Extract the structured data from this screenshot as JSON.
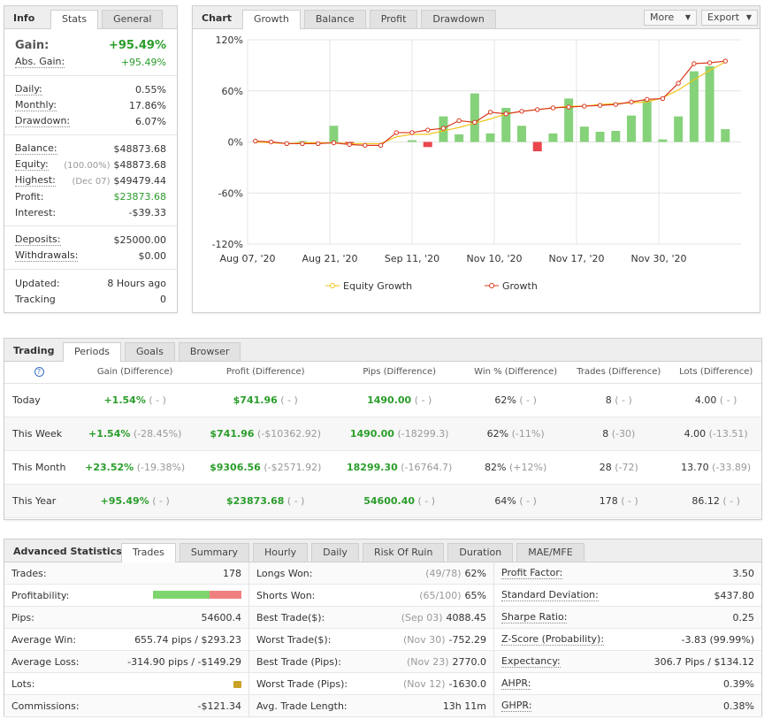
{
  "info": {
    "title": "Info",
    "tabs": [
      "Stats",
      "General"
    ],
    "gain_label": "Gain:",
    "gain": "+95.49%",
    "absgain_label": "Abs. Gain:",
    "absgain": "+95.49%",
    "rows1": [
      {
        "label": "Daily:",
        "value": "0.55%"
      },
      {
        "label": "Monthly:",
        "value": "17.86%"
      },
      {
        "label": "Drawdown:",
        "value": "6.07%"
      }
    ],
    "rows2": [
      {
        "label": "Balance:",
        "note": "",
        "value": "$48873.68"
      },
      {
        "label": "Equity:",
        "note": "(100.00%)",
        "value": "$48873.68"
      },
      {
        "label": "Highest:",
        "note": "(Dec 07)",
        "value": "$49479.44"
      },
      {
        "label": "Profit:",
        "note": "",
        "value": "$23873.68"
      },
      {
        "label": "Interest:",
        "note": "",
        "value": "-$39.33"
      }
    ],
    "rows3": [
      {
        "label": "Deposits:",
        "value": "$25000.00"
      },
      {
        "label": "Withdrawals:",
        "value": "$0.00"
      }
    ],
    "rows4": [
      {
        "label": "Updated:",
        "value": "8 Hours ago"
      },
      {
        "label": "Tracking",
        "value": "0"
      }
    ]
  },
  "chart": {
    "title": "Chart",
    "tabs": [
      "Growth",
      "Balance",
      "Profit",
      "Drawdown"
    ],
    "more": "More",
    "export": "Export"
  },
  "chart_data": {
    "type": "bar+line",
    "yticks": [
      "120%",
      "60%",
      "0%",
      "-60%",
      "-120%"
    ],
    "ylim": [
      -120,
      120
    ],
    "xticks": [
      "Aug 07, '20",
      "Aug 21, '20",
      "Sep 11, '20",
      "Nov 10, '20",
      "Nov 17, '20",
      "Nov 30, '20"
    ],
    "bars": [
      0,
      0,
      0,
      1,
      0,
      19,
      -3,
      0,
      0,
      0,
      2,
      -6,
      30,
      9,
      57,
      10,
      40,
      19,
      -11,
      10,
      51,
      18,
      12,
      13,
      31,
      49,
      3,
      30,
      83,
      89,
      15
    ],
    "series": [
      {
        "name": "Equity Growth",
        "color": "#f0c419",
        "values": [
          0,
          -1,
          -2,
          -1,
          -1,
          -1,
          -2,
          -2,
          -2,
          6,
          9,
          9,
          13,
          17,
          22,
          27,
          33,
          36,
          38,
          40,
          42,
          42,
          44,
          45,
          46,
          47,
          52,
          61,
          73,
          84,
          94
        ]
      },
      {
        "name": "Growth",
        "color": "#d9381e",
        "values": [
          1,
          0,
          -2,
          -2,
          -2,
          -1,
          -3,
          -4,
          -4,
          11,
          11,
          14,
          16,
          25,
          23,
          35,
          33,
          36,
          38,
          40,
          41,
          42,
          43,
          44,
          47,
          50,
          51,
          69,
          92,
          93,
          95
        ]
      }
    ]
  },
  "trading": {
    "title": "Trading",
    "tabs": [
      "Periods",
      "Goals",
      "Browser"
    ],
    "headers": [
      "Gain (Difference)",
      "Profit (Difference)",
      "Pips (Difference)",
      "Win % (Difference)",
      "Trades (Difference)",
      "Lots (Difference)"
    ],
    "rows": [
      {
        "period": "Today",
        "gain": "+1.54%",
        "gd": "( - )",
        "profit": "$741.96",
        "pd": "( - )",
        "pips": "1490.00",
        "pid": "( - )",
        "win": "62%",
        "wd": "( - )",
        "trades": "8",
        "td": "( - )",
        "lots": "4.00",
        "ld": "( - )"
      },
      {
        "period": "This Week",
        "gain": "+1.54%",
        "gd": "(-28.45%)",
        "profit": "$741.96",
        "pd": "(-$10362.92)",
        "pips": "1490.00",
        "pid": "(-18299.3)",
        "win": "62%",
        "wd": "(-11%)",
        "trades": "8",
        "td": "(-30)",
        "lots": "4.00",
        "ld": "(-13.51)"
      },
      {
        "period": "This Month",
        "gain": "+23.52%",
        "gd": "(-19.38%)",
        "profit": "$9306.56",
        "pd": "(-$2571.92)",
        "pips": "18299.30",
        "pid": "(-16764.7)",
        "win": "82%",
        "wd": "(+12%)",
        "trades": "28",
        "td": "(-72)",
        "lots": "13.70",
        "ld": "(-33.89)"
      },
      {
        "period": "This Year",
        "gain": "+95.49%",
        "gd": "( - )",
        "profit": "$23873.68",
        "pd": "( - )",
        "pips": "54600.40",
        "pid": "( - )",
        "win": "64%",
        "wd": "( - )",
        "trades": "178",
        "td": "( - )",
        "lots": "86.12",
        "ld": "( - )"
      }
    ]
  },
  "adv": {
    "title": "Advanced Statistics",
    "tabs": [
      "Trades",
      "Summary",
      "Hourly",
      "Daily",
      "Risk Of Ruin",
      "Duration",
      "MAE/MFE"
    ],
    "profitability_win_fraction": 0.64,
    "col1": [
      {
        "label": "Trades:",
        "value": "178"
      },
      {
        "label": "Profitability:",
        "value": ""
      },
      {
        "label": "Pips:",
        "value": "54600.4"
      },
      {
        "label": "Average Win:",
        "value": "655.74 pips / $293.23"
      },
      {
        "label": "Average Loss:",
        "value": "-314.90 pips / -$149.29"
      },
      {
        "label": "Lots:",
        "value": "lock-icon"
      },
      {
        "label": "Commissions:",
        "value": "-$121.34"
      }
    ],
    "col2": [
      {
        "label": "Longs Won:",
        "note": "(49/78)",
        "value": "62%"
      },
      {
        "label": "Shorts Won:",
        "note": "(65/100)",
        "value": "65%"
      },
      {
        "label": "Best Trade($):",
        "note": "(Sep 03)",
        "value": "4088.45"
      },
      {
        "label": "Worst Trade($):",
        "note": "(Nov 30)",
        "value": "-752.29"
      },
      {
        "label": "Best Trade (Pips):",
        "note": "(Nov 23)",
        "value": "2770.0"
      },
      {
        "label": "Worst Trade (Pips):",
        "note": "(Nov 12)",
        "value": "-1630.0"
      },
      {
        "label": "Avg. Trade Length:",
        "note": "",
        "value": "13h 11m"
      }
    ],
    "col3": [
      {
        "label": "Profit Factor:",
        "value": "3.50"
      },
      {
        "label": "Standard Deviation:",
        "value": "$437.80"
      },
      {
        "label": "Sharpe Ratio:",
        "value": "0.25"
      },
      {
        "label": "Z-Score (Probability):",
        "value": "-3.83 (99.99%)"
      },
      {
        "label": "Expectancy:",
        "value": "306.7 Pips / $134.12"
      },
      {
        "label": "AHPR:",
        "value": "0.39%"
      },
      {
        "label": "GHPR:",
        "value": "0.38%"
      }
    ]
  }
}
